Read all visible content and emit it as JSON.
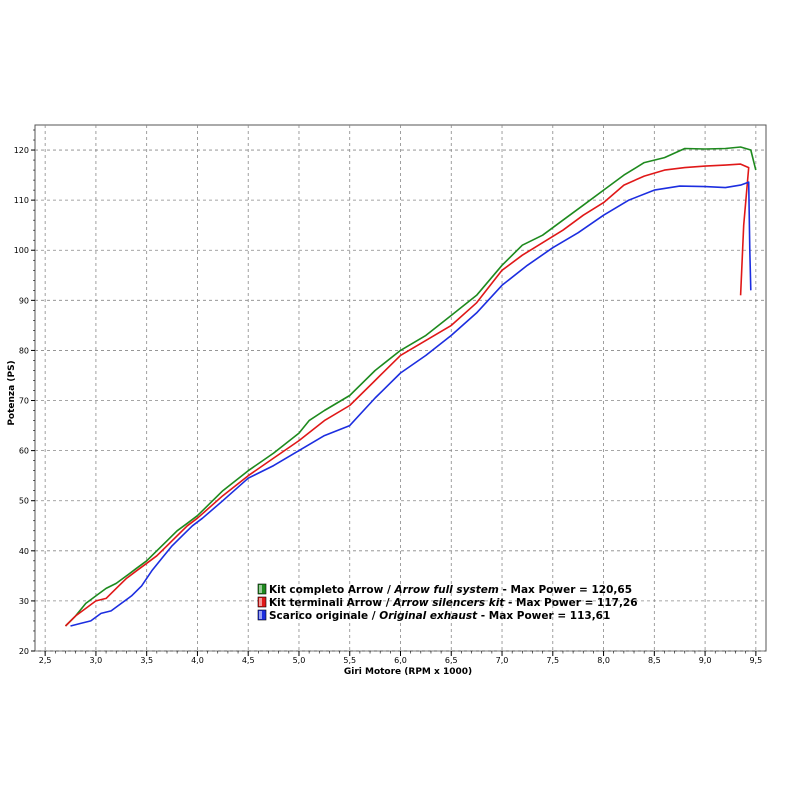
{
  "chart_data": {
    "type": "line",
    "xlabel": "Giri Motore (RPM x 1000)",
    "ylabel": "Potenza (PS)",
    "xlim": [
      2.4,
      9.6
    ],
    "ylim": [
      20,
      125
    ],
    "x_ticks": [
      "2,5",
      "3,0",
      "3,5",
      "4,0",
      "4,5",
      "5,0",
      "5,5",
      "6,0",
      "6,5",
      "7,0",
      "7,5",
      "8,0",
      "8,5",
      "9,0",
      "9,5"
    ],
    "x_tick_values": [
      2.5,
      3.0,
      3.5,
      4.0,
      4.5,
      5.0,
      5.5,
      6.0,
      6.5,
      7.0,
      7.5,
      8.0,
      8.5,
      9.0,
      9.5
    ],
    "y_ticks": [
      "20",
      "30",
      "40",
      "50",
      "60",
      "70",
      "80",
      "90",
      "100",
      "110",
      "120"
    ],
    "y_tick_values": [
      20,
      30,
      40,
      50,
      60,
      70,
      80,
      90,
      100,
      110,
      120
    ],
    "grid": true,
    "legend_position": "lower-center",
    "series": [
      {
        "name_plain": "Kit completo Arrow / ",
        "name_italic": "Arrow full system",
        "name_suffix": " - Max Power = 120,65",
        "color": "#1e8a1e",
        "x": [
          2.7,
          2.8,
          2.9,
          3.0,
          3.1,
          3.2,
          3.3,
          3.4,
          3.5,
          3.6,
          3.7,
          3.8,
          3.9,
          4.0,
          4.25,
          4.5,
          4.75,
          5.0,
          5.1,
          5.25,
          5.5,
          5.75,
          6.0,
          6.25,
          6.5,
          6.75,
          7.0,
          7.2,
          7.4,
          7.6,
          7.8,
          8.0,
          8.2,
          8.4,
          8.6,
          8.8,
          9.0,
          9.2,
          9.35,
          9.45,
          9.5
        ],
        "y": [
          25,
          27,
          29.5,
          31,
          32.5,
          33.5,
          35,
          36.5,
          38,
          40,
          42,
          44,
          45.5,
          47,
          52,
          56,
          59.5,
          63.5,
          66,
          68,
          71,
          76,
          80,
          83,
          87,
          91,
          97,
          101,
          103,
          106,
          109,
          112,
          115,
          117.5,
          118.5,
          120.3,
          120.2,
          120.3,
          120.6,
          120,
          116
        ]
      },
      {
        "name_plain": "Kit terminali Arrow / ",
        "name_italic": "Arrow silencers kit",
        "name_suffix": " - Max Power = 117,26",
        "color": "#e01818",
        "x": [
          2.7,
          2.8,
          2.9,
          3.0,
          3.1,
          3.2,
          3.3,
          3.4,
          3.5,
          3.6,
          3.7,
          3.8,
          3.9,
          4.0,
          4.25,
          4.5,
          4.75,
          5.0,
          5.25,
          5.5,
          5.75,
          6.0,
          6.25,
          6.5,
          6.75,
          7.0,
          7.2,
          7.4,
          7.6,
          7.8,
          8.0,
          8.2,
          8.4,
          8.6,
          8.8,
          9.0,
          9.2,
          9.35,
          9.43,
          9.38,
          9.35
        ],
        "y": [
          25,
          27,
          28.5,
          30,
          30.5,
          32.5,
          34.5,
          36,
          37.5,
          39,
          41,
          43,
          45,
          46.5,
          51,
          55,
          58.5,
          62,
          66,
          69,
          74,
          79,
          82,
          85,
          89.5,
          96,
          99,
          101.5,
          104,
          107,
          109.5,
          113,
          114.8,
          116,
          116.5,
          116.8,
          117,
          117.2,
          116.5,
          105,
          91
        ]
      },
      {
        "name_plain": "Scarico originale / ",
        "name_italic": "Original exhaust",
        "name_suffix": " - Max Power = 113,61",
        "color": "#1c2ee0",
        "x": [
          2.75,
          2.85,
          2.95,
          3.05,
          3.15,
          3.25,
          3.35,
          3.45,
          3.55,
          3.65,
          3.75,
          3.85,
          3.95,
          4.05,
          4.25,
          4.5,
          4.75,
          5.0,
          5.25,
          5.5,
          5.75,
          6.0,
          6.25,
          6.5,
          6.75,
          7.0,
          7.25,
          7.5,
          7.75,
          8.0,
          8.25,
          8.5,
          8.75,
          9.0,
          9.2,
          9.35,
          9.43,
          9.44,
          9.45
        ],
        "y": [
          25,
          25.5,
          26,
          27.5,
          28,
          29.5,
          31,
          33,
          36,
          38.5,
          41,
          43,
          45,
          46.5,
          50,
          54.5,
          57,
          60,
          63,
          65,
          70.5,
          75.5,
          79,
          83,
          87.5,
          93,
          97,
          100.5,
          103.5,
          107,
          110,
          112,
          112.8,
          112.7,
          112.5,
          113,
          113.6,
          100,
          92
        ]
      }
    ]
  }
}
